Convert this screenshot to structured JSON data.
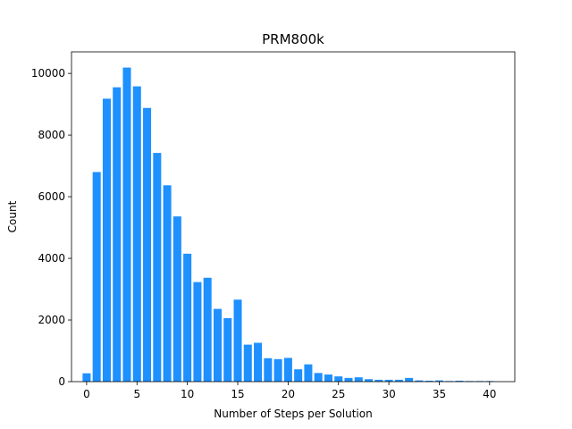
{
  "chart_data": {
    "type": "bar",
    "title": "PRM800k",
    "xlabel": "Number of Steps per Solution",
    "ylabel": "Count",
    "x": [
      0,
      1,
      2,
      3,
      4,
      5,
      6,
      7,
      8,
      9,
      10,
      11,
      12,
      13,
      14,
      15,
      16,
      17,
      18,
      19,
      20,
      21,
      22,
      23,
      24,
      25,
      26,
      27,
      28,
      29,
      30,
      31,
      32,
      33,
      34,
      35,
      36,
      37,
      38,
      39,
      40
    ],
    "values": [
      270,
      6800,
      9180,
      9550,
      10190,
      9580,
      8880,
      7420,
      6370,
      5360,
      4150,
      3230,
      3370,
      2360,
      2060,
      2660,
      1200,
      1260,
      760,
      730,
      770,
      400,
      560,
      280,
      230,
      170,
      120,
      140,
      80,
      60,
      60,
      60,
      120,
      40,
      30,
      40,
      20,
      30,
      20,
      20,
      20
    ],
    "xlim": [
      -1.5,
      42.5
    ],
    "ylim": [
      0,
      10700
    ],
    "xticks": [
      0,
      5,
      10,
      15,
      20,
      25,
      30,
      35,
      40
    ],
    "yticks": [
      0,
      2000,
      4000,
      6000,
      8000,
      10000
    ],
    "bar_color": "#1e90ff",
    "grid": false,
    "legend": "none"
  }
}
